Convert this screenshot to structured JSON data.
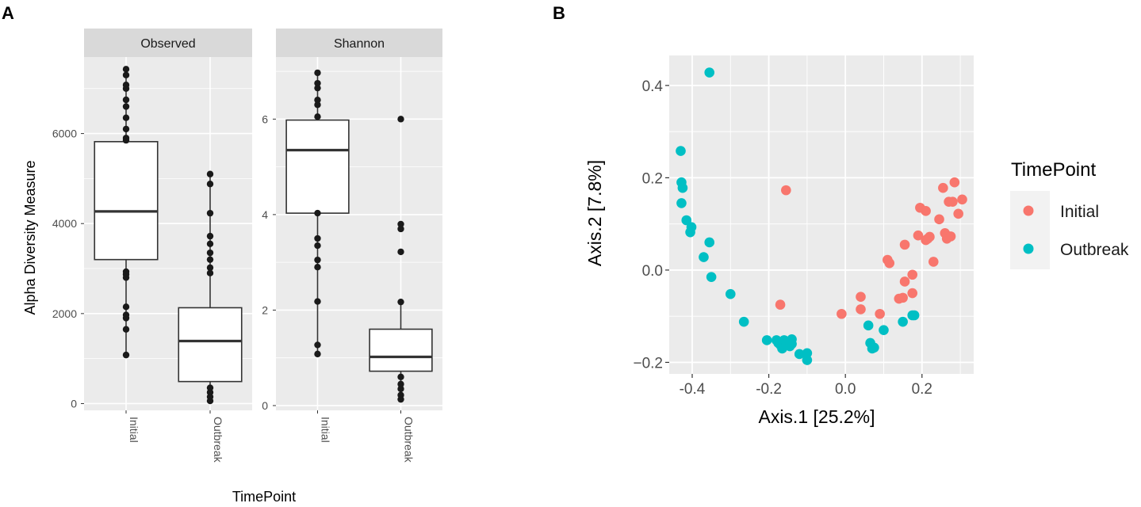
{
  "panel_labels": {
    "a": "A",
    "b": "B"
  },
  "chart_data": [
    {
      "type": "box",
      "panel": "A",
      "facet": "Observed",
      "x_title": "TimePoint",
      "y_title": "Alpha Diversity Measure",
      "categories": [
        "Initial",
        "Outbreak"
      ],
      "ylim": [
        -150,
        7700
      ],
      "yticks": [
        0,
        2000,
        4000,
        6000
      ],
      "ytick_labels": [
        "0",
        "2000",
        "4000",
        "6000"
      ],
      "boxes": [
        {
          "category": "Initial",
          "min": 1080,
          "q1": 3200,
          "median": 4270,
          "q3": 5820,
          "max": 7430,
          "points": [
            7430,
            7300,
            7080,
            7000,
            6750,
            6600,
            6350,
            6100,
            5900,
            5850,
            2930,
            2870,
            2800,
            2150,
            1970,
            1900,
            1650,
            1080
          ]
        },
        {
          "category": "Outbreak",
          "min": 60,
          "q1": 490,
          "median": 1390,
          "q3": 2130,
          "max": 5100,
          "points": [
            5100,
            4880,
            4230,
            3720,
            3550,
            3350,
            3200,
            3020,
            2900,
            350,
            250,
            150,
            60
          ]
        }
      ]
    },
    {
      "type": "box",
      "panel": "A",
      "facet": "Shannon",
      "categories": [
        "Initial",
        "Outbreak"
      ],
      "ylim": [
        -0.1,
        7.3
      ],
      "yticks": [
        0,
        2,
        4,
        6
      ],
      "ytick_labels": [
        "0",
        "2",
        "4",
        "6"
      ],
      "boxes": [
        {
          "category": "Initial",
          "min": 1.08,
          "q1": 4.03,
          "median": 5.35,
          "q3": 5.98,
          "max": 6.97,
          "points": [
            6.97,
            6.75,
            6.65,
            6.4,
            6.3,
            6.05,
            4.03,
            3.5,
            3.35,
            3.05,
            2.9,
            2.18,
            1.27,
            1.08
          ]
        },
        {
          "category": "Outbreak",
          "min": 0.13,
          "q1": 0.72,
          "median": 1.02,
          "q3": 1.6,
          "max": 2.17,
          "points": [
            6.0,
            3.8,
            3.7,
            3.22,
            2.17,
            0.6,
            0.45,
            0.35,
            0.22,
            0.13
          ]
        }
      ]
    },
    {
      "type": "scatter",
      "panel": "B",
      "xlabel": "Axis.1   [25.2%]",
      "ylabel": "Axis.2   [7.8%]",
      "xlim": [
        -0.46,
        0.335
      ],
      "ylim": [
        -0.225,
        0.465
      ],
      "xticks": [
        -0.4,
        -0.2,
        0.0,
        0.2
      ],
      "xtick_labels": [
        "-0.4",
        "-0.2",
        "0.0",
        "0.2"
      ],
      "yticks": [
        -0.2,
        0.0,
        0.2,
        0.4
      ],
      "ytick_labels": [
        "−0.2",
        "0.0",
        "0.2",
        "0.4"
      ],
      "legend": {
        "title": "TimePoint",
        "entries": [
          "Initial",
          "Outbreak"
        ],
        "position": "right"
      },
      "series": [
        {
          "name": "Initial",
          "color": "#F8766D",
          "points": [
            [
              -0.155,
              0.173
            ],
            [
              -0.17,
              -0.075
            ],
            [
              -0.01,
              -0.095
            ],
            [
              0.04,
              -0.085
            ],
            [
              0.04,
              -0.058
            ],
            [
              0.09,
              -0.095
            ],
            [
              0.11,
              0.022
            ],
            [
              0.115,
              0.015
            ],
            [
              0.14,
              -0.062
            ],
            [
              0.15,
              -0.06
            ],
            [
              0.155,
              0.055
            ],
            [
              0.155,
              -0.025
            ],
            [
              0.175,
              -0.05
            ],
            [
              0.175,
              -0.01
            ],
            [
              0.19,
              0.075
            ],
            [
              0.195,
              0.135
            ],
            [
              0.21,
              0.128
            ],
            [
              0.21,
              0.065
            ],
            [
              0.215,
              0.068
            ],
            [
              0.22,
              0.072
            ],
            [
              0.23,
              0.018
            ],
            [
              0.245,
              0.11
            ],
            [
              0.255,
              0.178
            ],
            [
              0.26,
              0.08
            ],
            [
              0.265,
              0.068
            ],
            [
              0.275,
              0.073
            ],
            [
              0.27,
              0.148
            ],
            [
              0.28,
              0.148
            ],
            [
              0.285,
              0.19
            ],
            [
              0.295,
              0.122
            ],
            [
              0.305,
              0.153
            ]
          ]
        },
        {
          "name": "Outbreak",
          "color": "#00BFC4",
          "points": [
            [
              -0.355,
              0.428
            ],
            [
              -0.43,
              0.258
            ],
            [
              -0.428,
              0.19
            ],
            [
              -0.425,
              0.178
            ],
            [
              -0.428,
              0.145
            ],
            [
              -0.415,
              0.108
            ],
            [
              -0.402,
              0.093
            ],
            [
              -0.405,
              0.082
            ],
            [
              -0.355,
              0.06
            ],
            [
              -0.37,
              0.028
            ],
            [
              -0.35,
              -0.015
            ],
            [
              -0.3,
              -0.052
            ],
            [
              -0.265,
              -0.112
            ],
            [
              -0.205,
              -0.152
            ],
            [
              -0.18,
              -0.152
            ],
            [
              -0.175,
              -0.158
            ],
            [
              -0.17,
              -0.162
            ],
            [
              -0.165,
              -0.17
            ],
            [
              -0.16,
              -0.152
            ],
            [
              -0.155,
              -0.16
            ],
            [
              -0.145,
              -0.165
            ],
            [
              -0.14,
              -0.15
            ],
            [
              -0.14,
              -0.16
            ],
            [
              -0.12,
              -0.182
            ],
            [
              -0.1,
              -0.18
            ],
            [
              -0.1,
              -0.195
            ],
            [
              0.06,
              -0.12
            ],
            [
              0.065,
              -0.158
            ],
            [
              0.07,
              -0.17
            ],
            [
              0.075,
              -0.168
            ],
            [
              0.1,
              -0.13
            ],
            [
              0.15,
              -0.112
            ],
            [
              0.175,
              -0.098
            ],
            [
              0.18,
              -0.098
            ]
          ]
        }
      ]
    }
  ]
}
